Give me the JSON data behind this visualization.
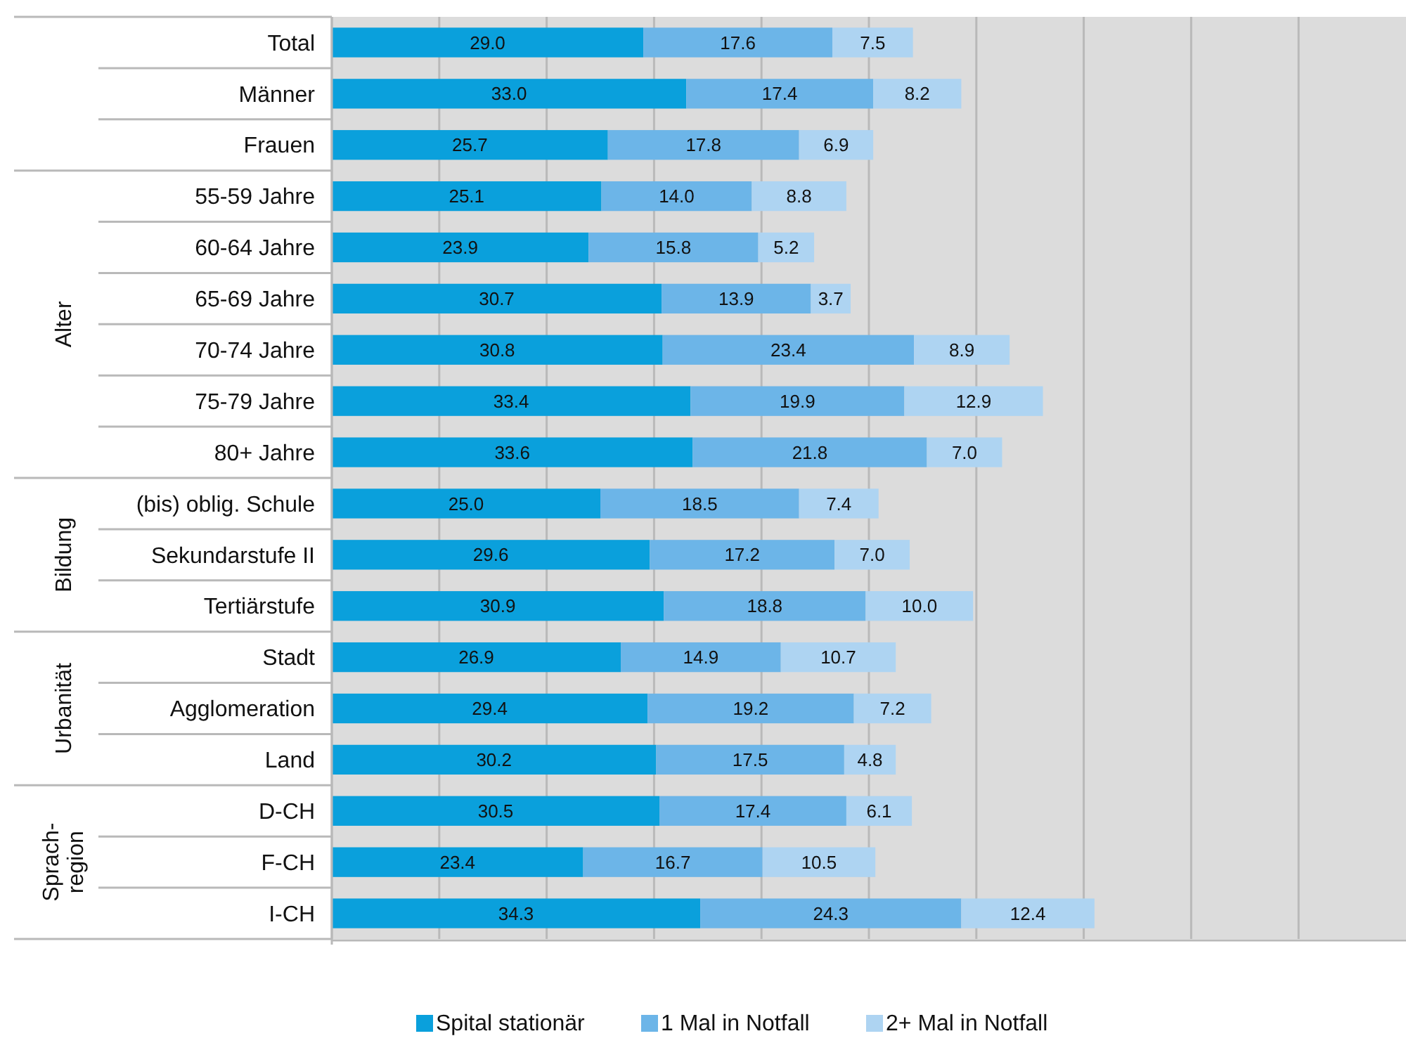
{
  "chart_data": {
    "type": "bar",
    "orientation": "horizontal",
    "stacked": true,
    "grid": "x",
    "legend": "bottom",
    "tick_labels": "y",
    "categories": [
      "Total",
      "Männer",
      "Frauen",
      "55-59 Jahre",
      "60-64 Jahre",
      "65-69 Jahre",
      "70-74 Jahre",
      "75-79 Jahre",
      "80+ Jahre",
      "(bis) oblig. Schule",
      "Sekundarstufe II",
      "Tertiärstufe",
      "Stadt",
      "Agglomeration",
      "Land",
      "D-CH",
      "F-CH",
      "I-CH"
    ],
    "xlim": [
      0,
      100
    ],
    "xticks": [
      {
        "value": 0,
        "label": null
      },
      {
        "value": 10,
        "label": null
      },
      {
        "value": 20,
        "label": null
      },
      {
        "value": 30,
        "label": null
      },
      {
        "value": 40,
        "label": null
      },
      {
        "value": 50,
        "label": null
      },
      {
        "value": 60,
        "label": null
      },
      {
        "value": 70,
        "label": null
      },
      {
        "value": 80,
        "label": null
      },
      {
        "value": 90,
        "label": null
      }
    ],
    "annotations": [
      "Alter",
      "Bildung",
      "Urbanität",
      "Sprach-\nregion"
    ],
    "series": [
      {
        "name": "Spital stationär",
        "color": "#0aa0dc",
        "values": [
          29.0,
          33.0,
          25.7,
          25.1,
          23.9,
          30.7,
          30.8,
          33.4,
          33.6,
          25.0,
          29.6,
          30.9,
          26.9,
          29.4,
          30.2,
          30.5,
          23.4,
          34.3
        ],
        "value_labels": [
          "29.0",
          "33.0",
          "25.7",
          "25.1",
          "23.9",
          "30.7",
          "30.8",
          "33.4",
          "33.6",
          "25.0",
          "29.6",
          "30.9",
          "26.9",
          "29.4",
          "30.2",
          "30.5",
          "23.4",
          "34.3"
        ]
      },
      {
        "name": "1 Mal in Notfall",
        "color": "#6cb5e8",
        "values": [
          17.6,
          17.4,
          17.8,
          14.0,
          15.8,
          13.9,
          23.4,
          19.9,
          21.8,
          18.5,
          17.2,
          18.8,
          14.9,
          19.2,
          17.5,
          17.4,
          16.7,
          24.3
        ],
        "value_labels": [
          "17.6",
          "17.4",
          "17.8",
          "14.0",
          "15.8",
          "13.9",
          "23.4",
          "19.9",
          "21.8",
          "18.5",
          "17.2",
          "18.8",
          "14.9",
          "19.2",
          "17.5",
          "17.4",
          "16.7",
          "24.3"
        ]
      },
      {
        "name": "2+ Mal in Notfall",
        "color": "#aed4f2",
        "values": [
          7.5,
          8.2,
          6.9,
          8.8,
          5.2,
          3.7,
          8.9,
          12.9,
          7.0,
          7.4,
          7.0,
          10.0,
          10.7,
          7.2,
          4.8,
          6.1,
          10.5,
          12.4
        ],
        "value_labels": [
          "7.5",
          "8.2",
          "6.9",
          "8.8",
          "5.2",
          "3.7",
          "8.9",
          "12.9",
          "7.0",
          "7.4",
          "7.0",
          "10.0",
          "10.7",
          "7.2",
          "4.8",
          "6.1",
          "10.5",
          "12.4"
        ]
      }
    ]
  }
}
